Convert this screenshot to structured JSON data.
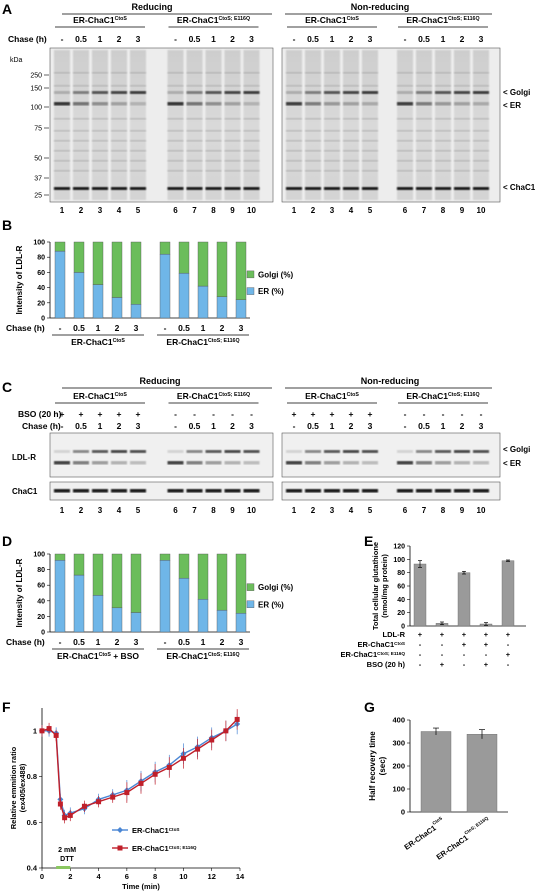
{
  "panels": {
    "A": {
      "letter": "A"
    },
    "B": {
      "letter": "B"
    },
    "C": {
      "letter": "C"
    },
    "D": {
      "letter": "D"
    },
    "E": {
      "letter": "E"
    },
    "F": {
      "letter": "F"
    },
    "G": {
      "letter": "G"
    }
  },
  "common": {
    "reducing": "Reducing",
    "non_reducing": "Non-reducing",
    "construct_wt": "ER-ChaC1",
    "sup_wt": "CtoS",
    "construct_mut": "ER-ChaC1",
    "sup_mut": "CtoS; E116Q",
    "chase_label": "Chase (h)",
    "chase_values": [
      "-",
      "0.5",
      "1",
      "2",
      "3"
    ],
    "lanes": [
      "1",
      "2",
      "3",
      "4",
      "5",
      "6",
      "7",
      "8",
      "9",
      "10"
    ]
  },
  "panel_A": {
    "kda_label": "kDa",
    "markers": [
      "250",
      "150",
      "100",
      "75",
      "50",
      "37",
      "25"
    ],
    "bands": [
      "< Golgi",
      "< ER",
      "< ChaC1"
    ]
  },
  "panel_B": {
    "ylabel": "Intensity of LDL-R",
    "yticks": [
      "0",
      "20",
      "40",
      "60",
      "80",
      "100"
    ],
    "legend_golgi": "Golgi (%)",
    "legend_er": "ER (%)"
  },
  "panel_C": {
    "bso_label": "BSO (20 h)",
    "bso_values": [
      "+",
      "+",
      "+",
      "+",
      "+",
      "-",
      "-",
      "-",
      "-",
      "-"
    ],
    "ldlr_label": "LDL-R",
    "chac1_label": "ChaC1",
    "bands": [
      "< Golgi",
      "< ER"
    ]
  },
  "panel_D": {
    "ylabel": "Intensity of LDL-R",
    "yticks": [
      "0",
      "20",
      "40",
      "60",
      "80",
      "100"
    ],
    "legend_golgi": "Golgi (%)",
    "legend_er": "ER (%)",
    "group1_suffix": " + BSO"
  },
  "panel_E": {
    "ylabel_line1": "Total cellular glutathione",
    "ylabel_line2": "(nmol/mg protein)",
    "yticks": [
      "0",
      "20",
      "40",
      "60",
      "80",
      "100",
      "120"
    ],
    "row_labels": [
      "LDL-R",
      "ER-ChaC1",
      "ER-ChaC1",
      "BSO (20 h)"
    ],
    "row_sups": [
      "",
      "CtoS",
      "CtoS; E116Q",
      ""
    ],
    "row_values": [
      [
        "+",
        "+",
        "+",
        "+",
        "+"
      ],
      [
        "-",
        "-",
        "+",
        "+",
        "-"
      ],
      [
        "-",
        "-",
        "-",
        "-",
        "+"
      ],
      [
        "-",
        "+",
        "-",
        "+",
        "-"
      ]
    ]
  },
  "panel_F": {
    "ylabel_line1": "Relative emmition ratio",
    "ylabel_line2": "(ex405/ex488)",
    "xlabel": "Time (min)",
    "yticks": [
      "0.4",
      "0.6",
      "0.8",
      "1"
    ],
    "xticks": [
      "0",
      "2",
      "4",
      "6",
      "8",
      "10",
      "12",
      "14"
    ],
    "dtt_line1": "2 mM",
    "dtt_line2": "DTT"
  },
  "panel_G": {
    "ylabel_line1": "Half recovery time",
    "ylabel_line2": "(sec)",
    "yticks": [
      "0",
      "100",
      "200",
      "300",
      "400"
    ]
  },
  "chart_data": [
    {
      "type": "bar",
      "panel": "B",
      "categories": [
        "-",
        "0.5",
        "1",
        "2",
        "3",
        "-",
        "0.5",
        "1",
        "2",
        "3"
      ],
      "series": [
        {
          "name": "ER (%)",
          "values": [
            88,
            60,
            44,
            27,
            18,
            84,
            59,
            42,
            28,
            24
          ],
          "color": "#6fb6e8"
        },
        {
          "name": "Golgi (%)",
          "values": [
            12,
            40,
            56,
            73,
            82,
            16,
            41,
            58,
            72,
            76
          ],
          "color": "#6bbd5b"
        }
      ],
      "ylim": [
        0,
        100
      ]
    },
    {
      "type": "bar",
      "panel": "D",
      "categories": [
        "-",
        "0.5",
        "1",
        "2",
        "3",
        "-",
        "0.5",
        "1",
        "2",
        "3"
      ],
      "series": [
        {
          "name": "ER (%)",
          "values": [
            92,
            73,
            47,
            31,
            25,
            92,
            69,
            42,
            28,
            24
          ],
          "color": "#6fb6e8"
        },
        {
          "name": "Golgi (%)",
          "values": [
            8,
            27,
            53,
            69,
            75,
            8,
            31,
            58,
            72,
            76
          ],
          "color": "#6bbd5b"
        }
      ],
      "ylim": [
        0,
        100
      ]
    },
    {
      "type": "bar",
      "panel": "E",
      "values": [
        93,
        4,
        80,
        3,
        98
      ],
      "errors": [
        5,
        2,
        2,
        2,
        1
      ],
      "ylim": [
        0,
        120
      ],
      "color": "#9a9a9a"
    },
    {
      "type": "line",
      "panel": "F",
      "xlim": [
        0,
        14
      ],
      "ylim": [
        0.4,
        1.1
      ],
      "series": [
        {
          "name": "ER-ChaC1",
          "sup": "CtoS",
          "color": "#4a86d4",
          "marker": "diamond",
          "x": [
            0,
            0.5,
            1.0,
            1.3,
            1.6,
            2,
            3,
            4,
            5,
            6,
            7,
            8,
            9,
            10,
            11,
            12,
            13,
            13.8
          ],
          "y": [
            1.0,
            1.0,
            0.99,
            0.7,
            0.63,
            0.64,
            0.66,
            0.7,
            0.72,
            0.74,
            0.78,
            0.82,
            0.85,
            0.9,
            0.93,
            0.97,
            1.0,
            1.03
          ]
        },
        {
          "name": "ER-ChaC1",
          "sup": "CtoS; E116Q",
          "color": "#c01f2a",
          "marker": "square",
          "x": [
            0,
            0.5,
            1.0,
            1.3,
            1.6,
            2,
            3,
            4,
            5,
            6,
            7,
            8,
            9,
            10,
            11,
            12,
            13,
            13.8
          ],
          "y": [
            1.0,
            1.01,
            0.98,
            0.68,
            0.62,
            0.63,
            0.67,
            0.69,
            0.71,
            0.73,
            0.77,
            0.81,
            0.84,
            0.88,
            0.92,
            0.96,
            1.0,
            1.05
          ]
        }
      ]
    },
    {
      "type": "bar",
      "panel": "G",
      "categories": [
        {
          "name": "ER-ChaC1",
          "sup": "CtoS"
        },
        {
          "name": "ER-ChaC1",
          "sup": "CtoS; E116Q"
        }
      ],
      "values": [
        350,
        338
      ],
      "errors": [
        15,
        20
      ],
      "ylim": [
        0,
        400
      ],
      "color": "#9a9a9a"
    }
  ]
}
